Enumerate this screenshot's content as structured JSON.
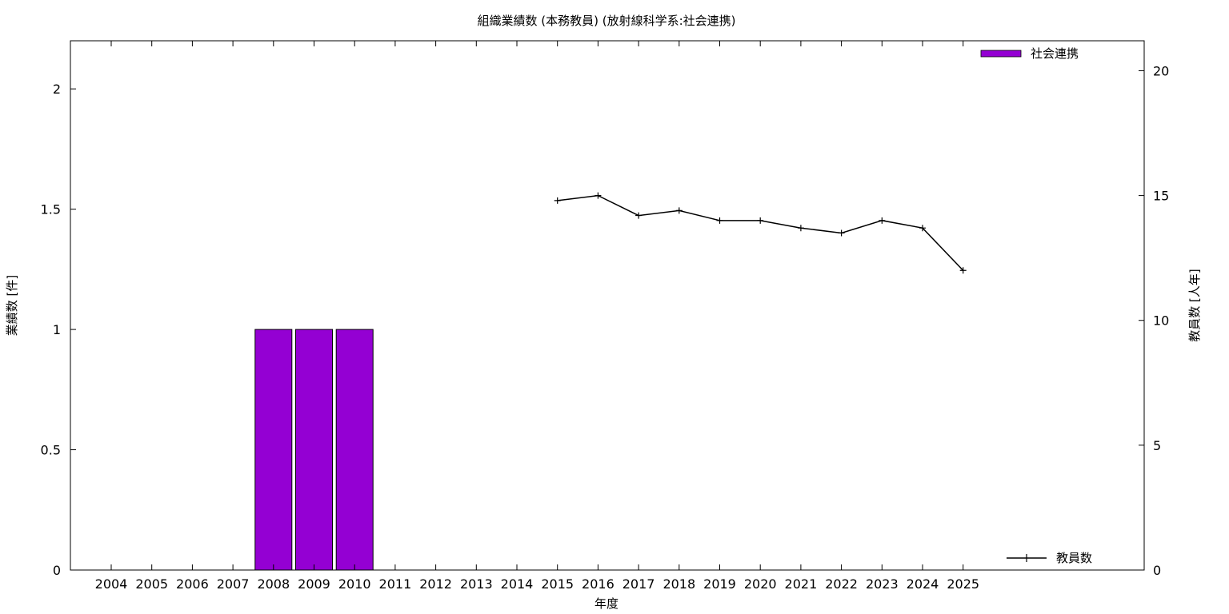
{
  "chart_data": {
    "type": "bar",
    "title": "組織業績数 (本務教員) (放射線科学系:社会連携)",
    "xlabel": "年度",
    "ylabel": "業績数 [件]",
    "y2label": "教員数 [人年]",
    "categories": [
      "2004",
      "2005",
      "2006",
      "2007",
      "2008",
      "2009",
      "2010",
      "2011",
      "2012",
      "2013",
      "2014",
      "2015",
      "2016",
      "2017",
      "2018",
      "2019",
      "2020",
      "2021",
      "2022",
      "2023",
      "2024",
      "2025"
    ],
    "ylim": [
      0,
      2.2
    ],
    "y2lim": [
      0,
      21.2
    ],
    "yticks": [
      "0",
      "0.5",
      "1",
      "1.5",
      "2"
    ],
    "y2ticks": [
      "0",
      "5",
      "10",
      "15",
      "20"
    ],
    "series": [
      {
        "name": "社会連携",
        "kind": "bar",
        "axis": "left",
        "color": "#9400d3",
        "values": [
          0,
          0,
          0,
          0,
          1,
          1,
          1,
          0,
          0,
          0,
          0,
          0,
          0,
          0,
          0,
          0,
          0,
          0,
          0,
          0,
          0,
          0
        ]
      },
      {
        "name": "教員数",
        "kind": "line",
        "axis": "right",
        "color": "#000000",
        "values": [
          null,
          null,
          null,
          null,
          null,
          null,
          null,
          null,
          null,
          null,
          null,
          14.8,
          15.0,
          14.2,
          14.4,
          14.0,
          14.0,
          13.7,
          13.5,
          14.0,
          13.7,
          12.0
        ]
      }
    ],
    "legend": {
      "bar_position": "top-right",
      "line_position": "bottom-right"
    },
    "grid": false
  }
}
